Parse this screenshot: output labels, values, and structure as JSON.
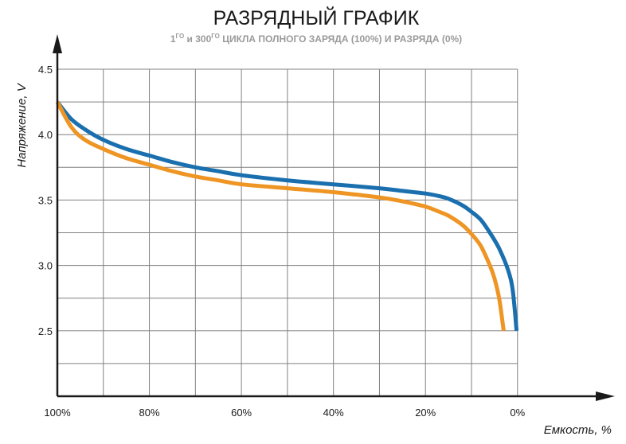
{
  "chart_data": {
    "type": "line",
    "title": "РАЗРЯДНЫЙ ГРАФИК",
    "subtitle": {
      "part1": "1",
      "sup1": "ГО",
      "part2": " и 300",
      "sup2": "ГО",
      "part3": " ЦИКЛА ПОЛНОГО ЗАРЯДА (100%) И РАЗРЯДА (0%)"
    },
    "xlabel": "Емкость, %",
    "ylabel": "Напряжение, V",
    "x_reversed": true,
    "xlim": [
      100,
      -17
    ],
    "ylim": [
      2.0,
      4.5
    ],
    "x_ticks": [
      {
        "value": 100,
        "label": "100%"
      },
      {
        "value": 80,
        "label": "80%"
      },
      {
        "value": 60,
        "label": "60%"
      },
      {
        "value": 40,
        "label": "40%"
      },
      {
        "value": 20,
        "label": "20%"
      },
      {
        "value": 0,
        "label": "0%"
      }
    ],
    "y_ticks": [
      {
        "value": 4.5,
        "label": "4.5"
      },
      {
        "value": 4.0,
        "label": "4.0"
      },
      {
        "value": 3.5,
        "label": "3.5"
      },
      {
        "value": 3.0,
        "label": "3.0"
      },
      {
        "value": 2.5,
        "label": "2.5"
      }
    ],
    "grid": true,
    "grid_x_step": 10,
    "grid_y_step": 0.25,
    "colors": {
      "axis": "#1a1a1a",
      "grid": "#808080"
    },
    "series": [
      {
        "color": "#1a6fae",
        "points": [
          [
            100,
            4.25
          ],
          [
            97,
            4.12
          ],
          [
            94,
            4.04
          ],
          [
            90,
            3.96
          ],
          [
            85,
            3.89
          ],
          [
            80,
            3.84
          ],
          [
            75,
            3.79
          ],
          [
            70,
            3.75
          ],
          [
            65,
            3.72
          ],
          [
            60,
            3.69
          ],
          [
            50,
            3.65
          ],
          [
            40,
            3.62
          ],
          [
            30,
            3.59
          ],
          [
            25,
            3.57
          ],
          [
            20,
            3.55
          ],
          [
            17,
            3.53
          ],
          [
            15,
            3.51
          ],
          [
            12,
            3.46
          ],
          [
            10,
            3.41
          ],
          [
            8,
            3.35
          ],
          [
            6,
            3.25
          ],
          [
            4,
            3.13
          ],
          [
            2,
            2.96
          ],
          [
            1,
            2.8
          ],
          [
            0.2,
            2.5
          ]
        ]
      },
      {
        "color": "#ee9524",
        "points": [
          [
            100,
            4.25
          ],
          [
            97,
            4.06
          ],
          [
            94,
            3.96
          ],
          [
            90,
            3.89
          ],
          [
            85,
            3.82
          ],
          [
            80,
            3.77
          ],
          [
            75,
            3.72
          ],
          [
            70,
            3.68
          ],
          [
            65,
            3.65
          ],
          [
            60,
            3.62
          ],
          [
            50,
            3.59
          ],
          [
            40,
            3.56
          ],
          [
            30,
            3.52
          ],
          [
            25,
            3.49
          ],
          [
            20,
            3.45
          ],
          [
            17,
            3.41
          ],
          [
            15,
            3.38
          ],
          [
            12,
            3.31
          ],
          [
            10,
            3.24
          ],
          [
            8,
            3.15
          ],
          [
            6,
            3.0
          ],
          [
            5,
            2.9
          ],
          [
            4,
            2.75
          ],
          [
            3,
            2.5
          ]
        ]
      }
    ]
  }
}
